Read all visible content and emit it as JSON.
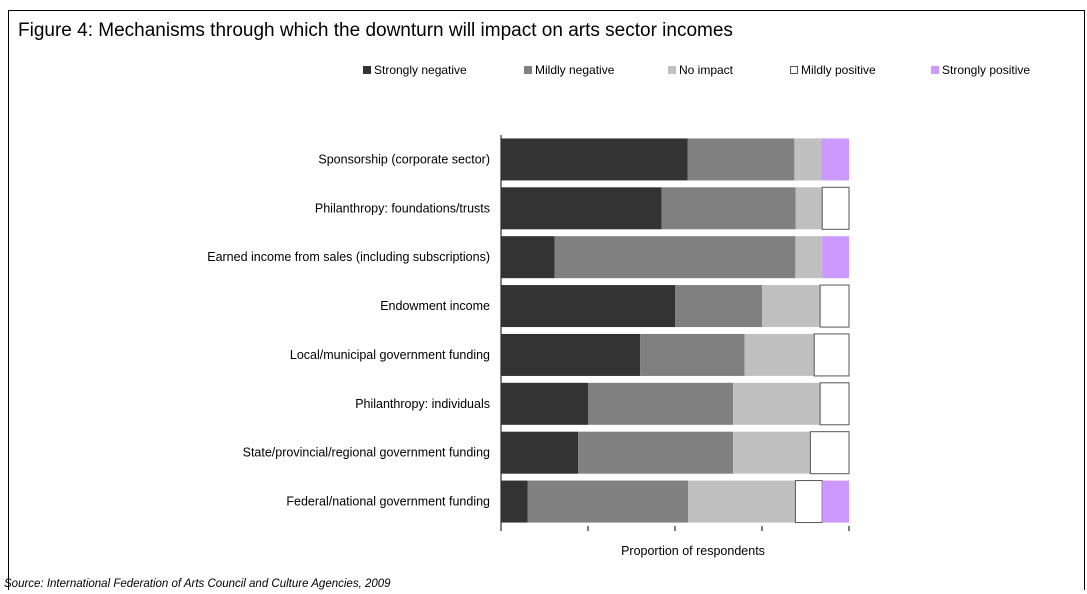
{
  "figure": {
    "title": "Figure 4: Mechanisms through which the downturn will impact on arts sector incomes",
    "source": "Source: International Federation of Arts Council and Culture Agencies, 2009"
  },
  "colors": {
    "strongly_negative": "#333333",
    "mildly_negative": "#808080",
    "no_impact": "#c0c0c0",
    "mildly_positive": "#ffffff",
    "strongly_positive": "#cc99ff"
  },
  "chart_data": {
    "type": "bar",
    "orientation": "horizontal",
    "stacked": true,
    "normalized": true,
    "title": "",
    "xlabel": "Proportion of respondents",
    "ylabel": "",
    "xlim": [
      0,
      1
    ],
    "grid": false,
    "legend_position": "top",
    "categories": [
      "Sponsorship (corporate sector)",
      "Philanthropy: foundations/trusts",
      "Earned income from sales (including subscriptions)",
      "Endowment income",
      "Local/municipal government funding",
      "Philanthropy: individuals",
      "State/provincial/regional government funding",
      "Federal/national government funding"
    ],
    "series": [
      {
        "name": "Strongly negative",
        "color": "#333333",
        "values": [
          0.536,
          0.462,
          0.154,
          0.5,
          0.4,
          0.25,
          0.222,
          0.077
        ]
      },
      {
        "name": "Mildly negative",
        "color": "#808080",
        "values": [
          0.307,
          0.385,
          0.692,
          0.25,
          0.3,
          0.417,
          0.445,
          0.461
        ]
      },
      {
        "name": "No impact",
        "color": "#c0c0c0",
        "values": [
          0.077,
          0.076,
          0.077,
          0.167,
          0.2,
          0.25,
          0.222,
          0.308
        ]
      },
      {
        "name": "Mildly positive",
        "color": "#ffffff",
        "values": [
          0.0,
          0.077,
          0.0,
          0.083,
          0.1,
          0.083,
          0.111,
          0.077
        ]
      },
      {
        "name": "Strongly positive",
        "color": "#cc99ff",
        "values": [
          0.08,
          0.0,
          0.077,
          0.0,
          0.0,
          0.0,
          0.0,
          0.077
        ]
      }
    ]
  }
}
